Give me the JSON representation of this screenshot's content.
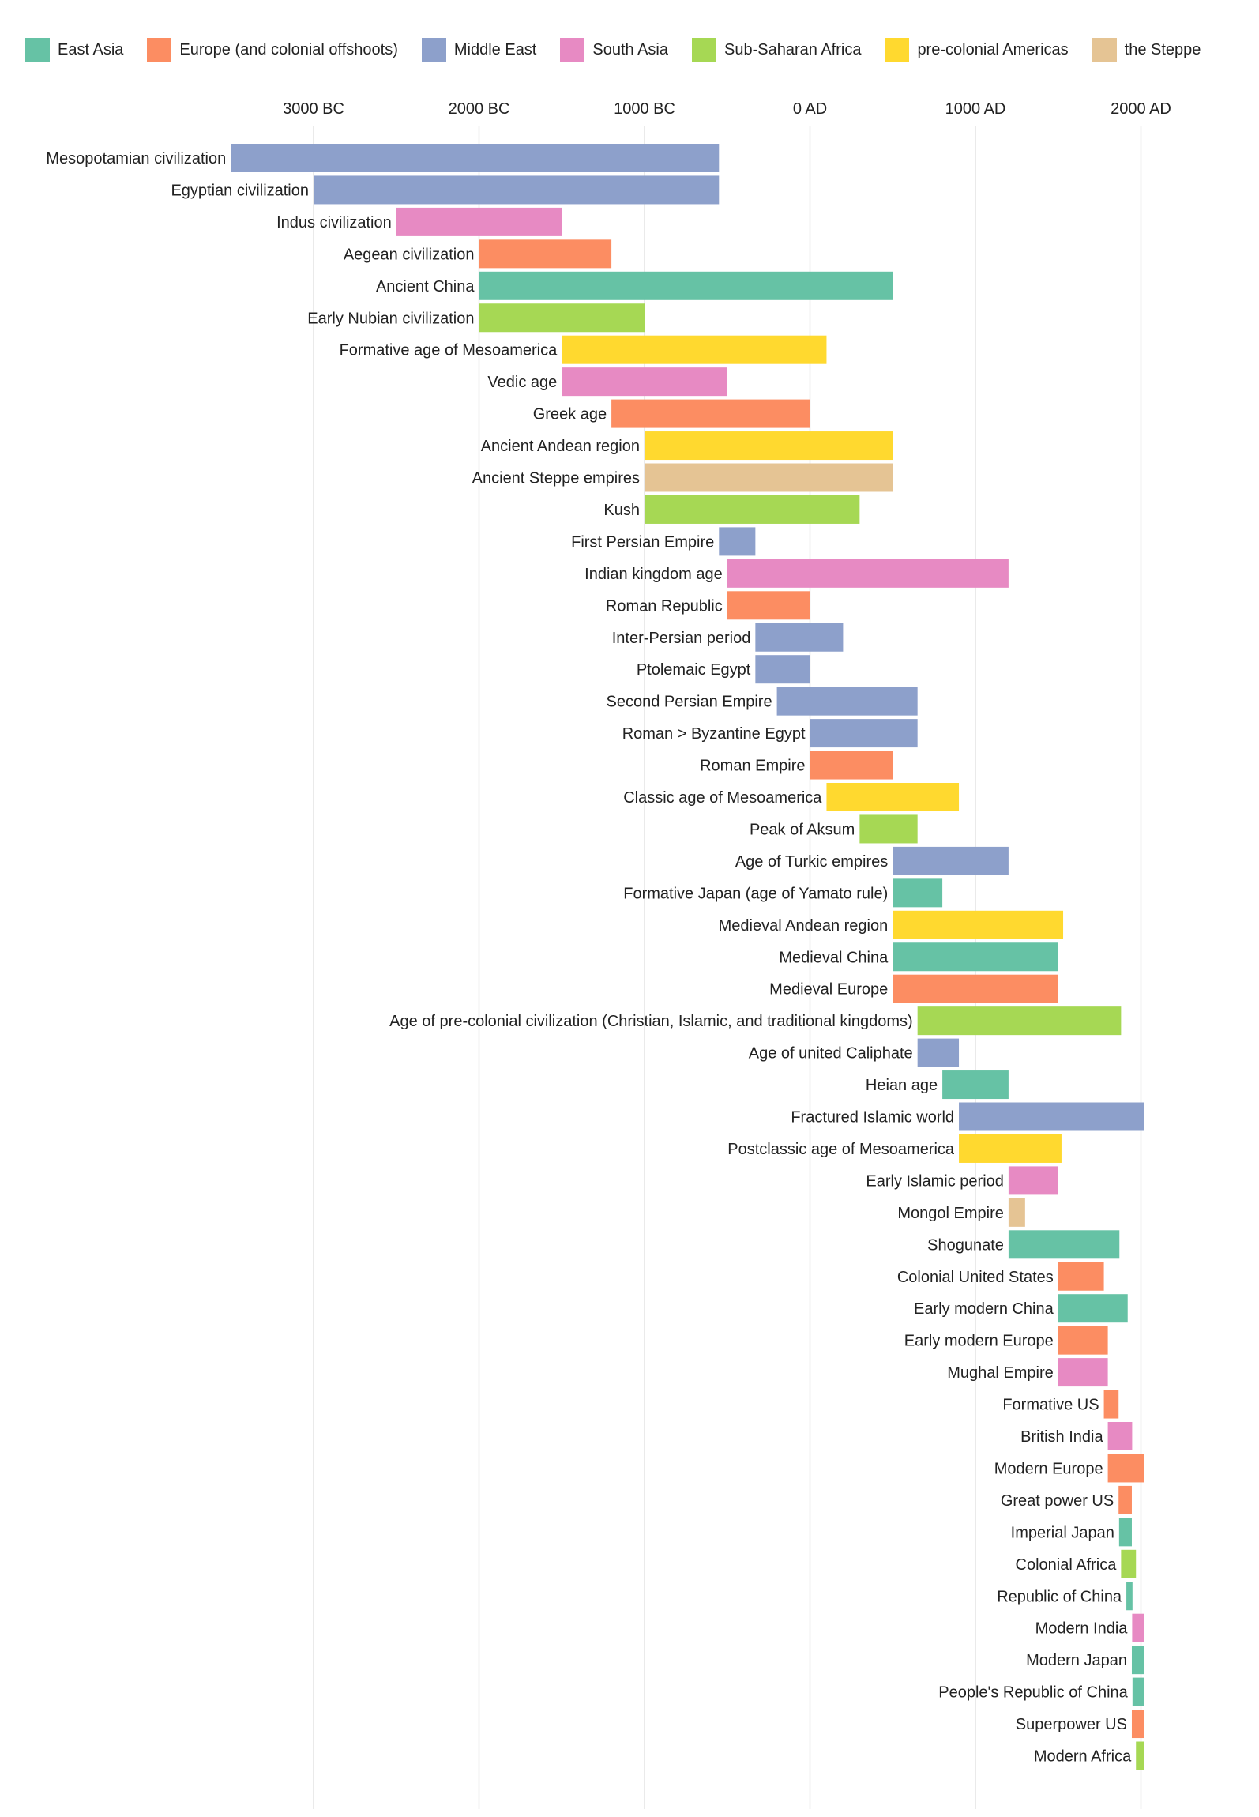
{
  "chart_data": {
    "type": "bar",
    "orientation": "horizontal-timeline",
    "title": "",
    "xlabel": "",
    "ylabel": "",
    "xlim": [
      -3500,
      2100
    ],
    "x_ticks": [
      {
        "value": -3000,
        "label": "3000 BC"
      },
      {
        "value": -2000,
        "label": "2000 BC"
      },
      {
        "value": -1000,
        "label": "1000 BC"
      },
      {
        "value": 0,
        "label": "0 AD"
      },
      {
        "value": 1000,
        "label": "1000 AD"
      },
      {
        "value": 2000,
        "label": "2000 AD"
      }
    ],
    "grid": true,
    "legend_position": "top",
    "legend": [
      {
        "region": "East Asia",
        "color": "#66c2a5"
      },
      {
        "region": "Europe (and colonial offshoots)",
        "color": "#fc8d62"
      },
      {
        "region": "Middle East",
        "color": "#8da0cb"
      },
      {
        "region": "South Asia",
        "color": "#e78ac3"
      },
      {
        "region": "Sub-Saharan Africa",
        "color": "#a6d854"
      },
      {
        "region": "pre-colonial Americas",
        "color": "#ffd92f"
      },
      {
        "region": "the Steppe",
        "color": "#e5c494"
      }
    ],
    "bars": [
      {
        "name": "Mesopotamian civilization",
        "start": -3500,
        "end": -550,
        "region": "Middle East"
      },
      {
        "name": "Egyptian civilization",
        "start": -3000,
        "end": -550,
        "region": "Middle East"
      },
      {
        "name": "Indus civilization",
        "start": -2500,
        "end": -1500,
        "region": "South Asia"
      },
      {
        "name": "Aegean civilization",
        "start": -2000,
        "end": -1200,
        "region": "Europe (and colonial offshoots)"
      },
      {
        "name": "Ancient China",
        "start": -2000,
        "end": 500,
        "region": "East Asia"
      },
      {
        "name": "Early Nubian civilization",
        "start": -2000,
        "end": -1000,
        "region": "Sub-Saharan Africa"
      },
      {
        "name": "Formative age of Mesoamerica",
        "start": -1500,
        "end": 100,
        "region": "pre-colonial Americas"
      },
      {
        "name": "Vedic age",
        "start": -1500,
        "end": -500,
        "region": "South Asia"
      },
      {
        "name": "Greek age",
        "start": -1200,
        "end": 0,
        "region": "Europe (and colonial offshoots)"
      },
      {
        "name": "Ancient Andean region",
        "start": -1000,
        "end": 500,
        "region": "pre-colonial Americas"
      },
      {
        "name": "Ancient Steppe empires",
        "start": -1000,
        "end": 500,
        "region": "the Steppe"
      },
      {
        "name": "Kush",
        "start": -1000,
        "end": 300,
        "region": "Sub-Saharan Africa"
      },
      {
        "name": "First Persian Empire",
        "start": -550,
        "end": -330,
        "region": "Middle East"
      },
      {
        "name": "Indian kingdom age",
        "start": -500,
        "end": 1200,
        "region": "South Asia"
      },
      {
        "name": "Roman Republic",
        "start": -500,
        "end": 0,
        "region": "Europe (and colonial offshoots)"
      },
      {
        "name": "Inter-Persian period",
        "start": -330,
        "end": 200,
        "region": "Middle East"
      },
      {
        "name": "Ptolemaic Egypt",
        "start": -330,
        "end": 0,
        "region": "Middle East"
      },
      {
        "name": "Second Persian Empire",
        "start": -200,
        "end": 650,
        "region": "Middle East"
      },
      {
        "name": "Roman > Byzantine Egypt",
        "start": 0,
        "end": 650,
        "region": "Middle East"
      },
      {
        "name": "Roman Empire",
        "start": 0,
        "end": 500,
        "region": "Europe (and colonial offshoots)"
      },
      {
        "name": "Classic age of Mesoamerica",
        "start": 100,
        "end": 900,
        "region": "pre-colonial Americas"
      },
      {
        "name": "Peak of Aksum",
        "start": 300,
        "end": 650,
        "region": "Sub-Saharan Africa"
      },
      {
        "name": "Age of Turkic empires",
        "start": 500,
        "end": 1200,
        "region": "Middle East"
      },
      {
        "name": "Formative Japan (age of Yamato rule)",
        "start": 500,
        "end": 800,
        "region": "East Asia"
      },
      {
        "name": "Medieval Andean region",
        "start": 500,
        "end": 1530,
        "region": "pre-colonial Americas"
      },
      {
        "name": "Medieval China",
        "start": 500,
        "end": 1500,
        "region": "East Asia"
      },
      {
        "name": "Medieval Europe",
        "start": 500,
        "end": 1500,
        "region": "Europe (and colonial offshoots)"
      },
      {
        "name": "Age of pre-colonial civilization (Christian, Islamic, and traditional kingdoms)",
        "start": 650,
        "end": 1880,
        "region": "Sub-Saharan Africa"
      },
      {
        "name": "Age of united Caliphate",
        "start": 650,
        "end": 900,
        "region": "Middle East"
      },
      {
        "name": "Heian age",
        "start": 800,
        "end": 1200,
        "region": "East Asia"
      },
      {
        "name": "Fractured Islamic world",
        "start": 900,
        "end": 2020,
        "region": "Middle East"
      },
      {
        "name": "Postclassic age of Mesoamerica",
        "start": 900,
        "end": 1520,
        "region": "pre-colonial Americas"
      },
      {
        "name": "Early Islamic period",
        "start": 1200,
        "end": 1500,
        "region": "South Asia"
      },
      {
        "name": "Mongol Empire",
        "start": 1200,
        "end": 1300,
        "region": "the Steppe"
      },
      {
        "name": "Shogunate",
        "start": 1200,
        "end": 1870,
        "region": "East Asia"
      },
      {
        "name": "Colonial United States",
        "start": 1500,
        "end": 1776,
        "region": "Europe (and colonial offshoots)"
      },
      {
        "name": "Early modern China",
        "start": 1500,
        "end": 1920,
        "region": "East Asia"
      },
      {
        "name": "Early modern Europe",
        "start": 1500,
        "end": 1800,
        "region": "Europe (and colonial offshoots)"
      },
      {
        "name": "Mughal Empire",
        "start": 1500,
        "end": 1800,
        "region": "South Asia"
      },
      {
        "name": "Formative US",
        "start": 1776,
        "end": 1865,
        "region": "Europe (and colonial offshoots)"
      },
      {
        "name": "British India",
        "start": 1800,
        "end": 1947,
        "region": "South Asia"
      },
      {
        "name": "Modern Europe",
        "start": 1800,
        "end": 2020,
        "region": "Europe (and colonial offshoots)"
      },
      {
        "name": "Great power US",
        "start": 1865,
        "end": 1945,
        "region": "Europe (and colonial offshoots)"
      },
      {
        "name": "Imperial Japan",
        "start": 1868,
        "end": 1945,
        "region": "East Asia"
      },
      {
        "name": "Colonial Africa",
        "start": 1880,
        "end": 1970,
        "region": "Sub-Saharan Africa"
      },
      {
        "name": "Republic of China",
        "start": 1912,
        "end": 1949,
        "region": "East Asia"
      },
      {
        "name": "Modern India",
        "start": 1947,
        "end": 2020,
        "region": "South Asia"
      },
      {
        "name": "Modern Japan",
        "start": 1945,
        "end": 2020,
        "region": "East Asia"
      },
      {
        "name": "People's Republic of China",
        "start": 1949,
        "end": 2020,
        "region": "East Asia"
      },
      {
        "name": "Superpower US",
        "start": 1945,
        "end": 2020,
        "region": "Europe (and colonial offshoots)"
      },
      {
        "name": "Modern Africa",
        "start": 1970,
        "end": 2020,
        "region": "Sub-Saharan Africa"
      }
    ]
  }
}
